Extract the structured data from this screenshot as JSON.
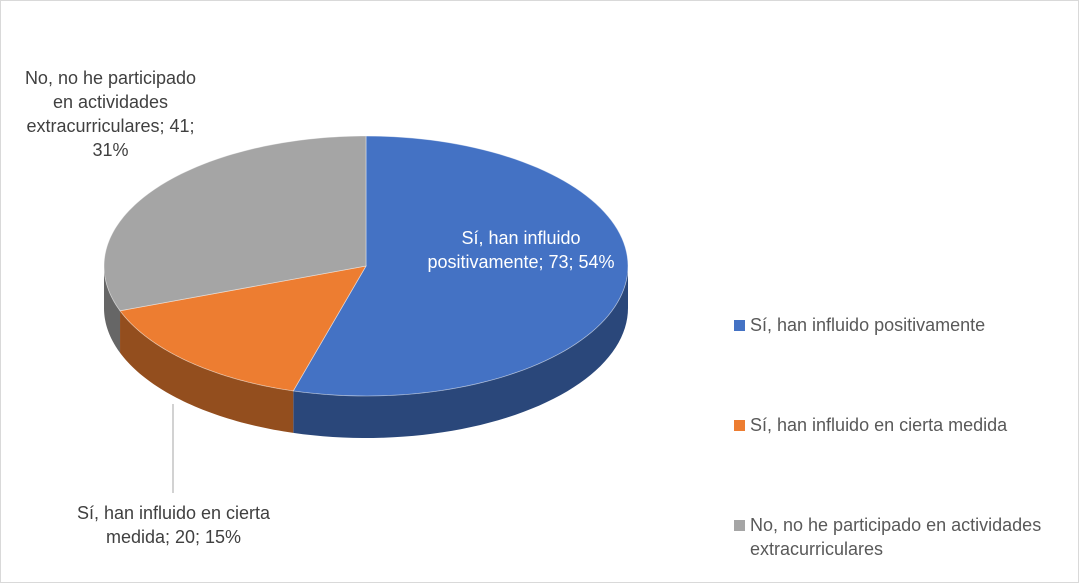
{
  "chart_data": {
    "type": "pie",
    "title": "",
    "three_d": true,
    "legend_position": "right",
    "slices": [
      {
        "name": "Sí, han influido positivamente",
        "value": 73,
        "percent": 54,
        "data_label": "Sí, han influido positivamente; 73; 54%",
        "color": "#4472c4"
      },
      {
        "name": "Sí, han influido en cierta medida",
        "value": 20,
        "percent": 15,
        "data_label": "Sí, han influido en cierta medida; 20; 15%",
        "color": "#ed7d31"
      },
      {
        "name": "No, no he participado en actividades extracurriculares",
        "value": 41,
        "percent": 31,
        "data_label": "No, no he participado en actividades extracurriculares; 41; 31%",
        "color": "#a5a5a5"
      }
    ],
    "legend": [
      "Sí, han influido positivamente",
      "Sí, han influido en cierta medida",
      "No, no he participado en actividades extracurriculares"
    ]
  }
}
